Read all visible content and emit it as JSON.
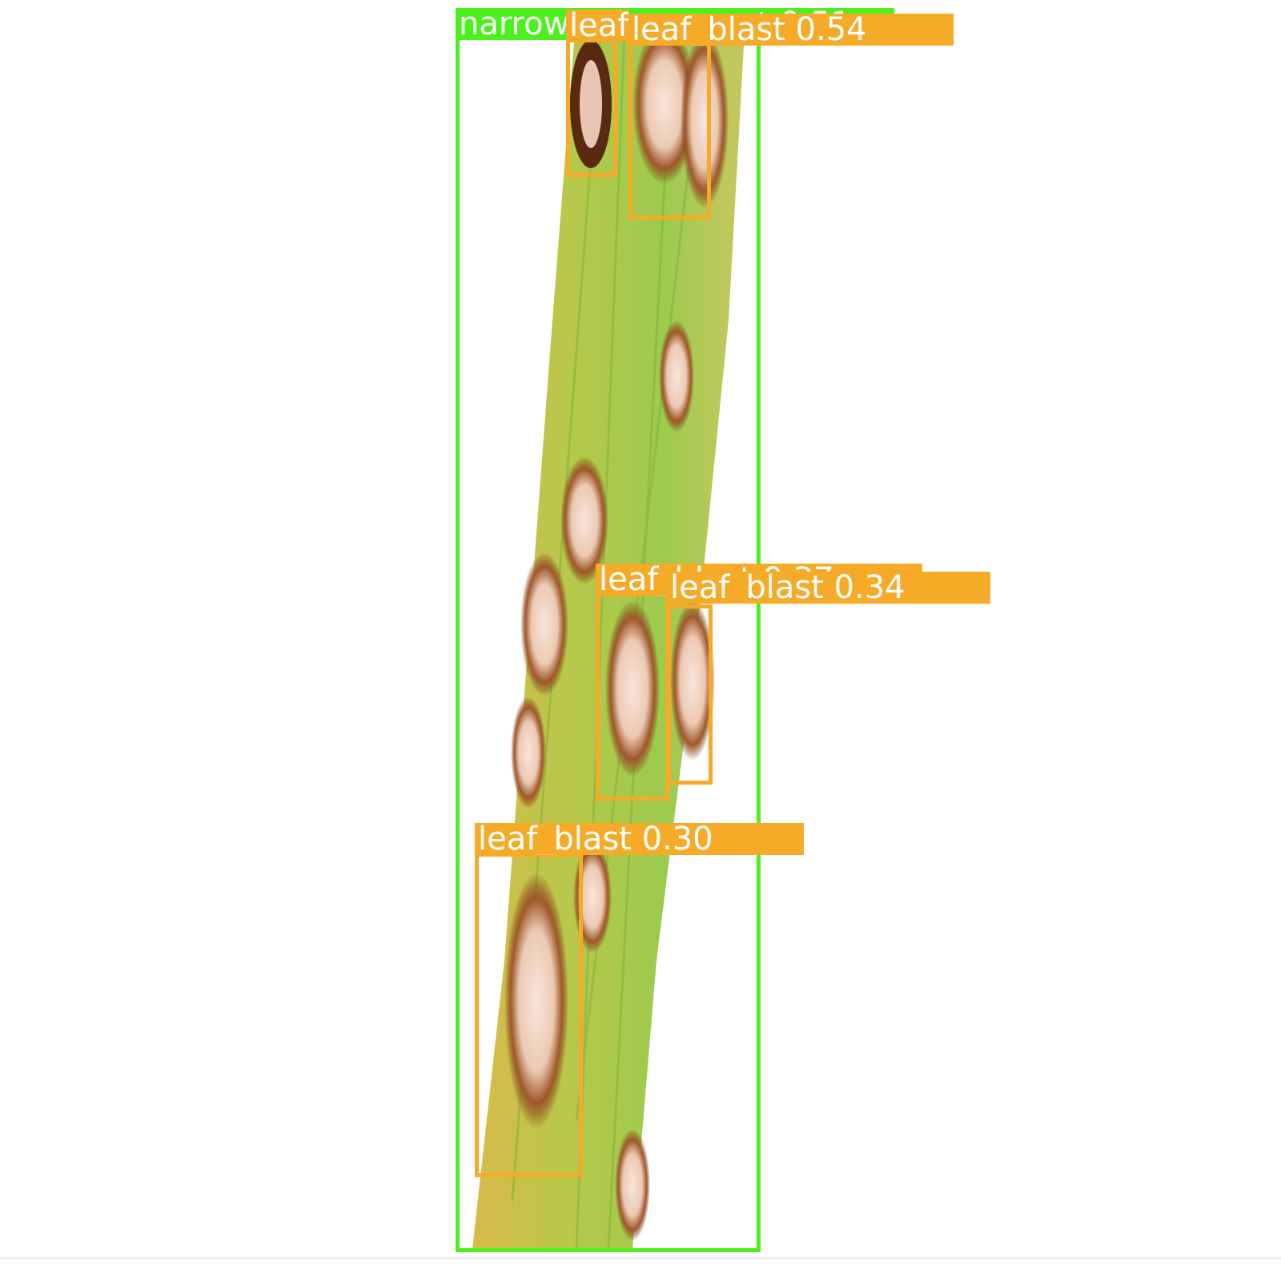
{
  "image": {
    "subject": "rice leaf with leaf blast lesions",
    "background_color": "#ffffff",
    "leaf_colors": [
      "#8fbf3a",
      "#c8c44a",
      "#a9cf55",
      "#d4b24a"
    ],
    "lesion_colors": {
      "border": "#8a4a1c",
      "center": "#f3dcd0"
    }
  },
  "detections": [
    {
      "class": "narrow_brown_spot",
      "label": "narrow_brown_spot 0.51",
      "color": "#4cf01c"
    },
    {
      "class": "leaf_blast",
      "label": "leaf_blast 0.54",
      "color": "#f6ab28"
    },
    {
      "class": "leaf_blast",
      "label": "leaf_blast 0.67",
      "color": "#f6ab28"
    },
    {
      "class": "leaf_blast",
      "label": "leaf_blast 0.37",
      "color": "#f6ab28"
    },
    {
      "class": "leaf_blast",
      "label": "leaf_blast 0.34",
      "color": "#f6ab28"
    },
    {
      "class": "leaf_blast",
      "label": "leaf_blast 0.30",
      "color": "#f6ab28"
    }
  ]
}
